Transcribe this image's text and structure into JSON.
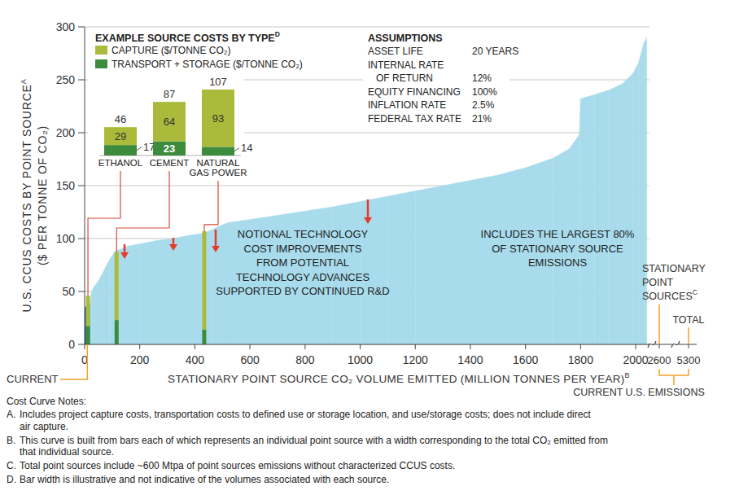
{
  "chart_data": [
    {
      "type": "area",
      "y_label": [
        "U.S. CCUS COSTS BY POINT SOURCE",
        "($ PER TONNE OF CO₂)"
      ],
      "y_label_sup": "A",
      "x_label": "STATIONARY POINT SOURCE CO₂ VOLUME EMITTED (MILLION TONNES PER YEAR)",
      "x_label_sup": "B",
      "xlim": [
        0,
        2050
      ],
      "xticks": [
        0,
        200,
        400,
        600,
        800,
        1000,
        1200,
        1400,
        1600,
        1800,
        2000
      ],
      "ylim": [
        0,
        300
      ],
      "yticks": [
        0,
        50,
        100,
        150,
        200,
        250,
        300
      ],
      "grid": true,
      "series": [
        {
          "name": "CURRENT",
          "color": "#1d6fb8",
          "x": [
            0,
            20
          ],
          "values": [
            35,
            38
          ]
        },
        {
          "color": "#a8dcec",
          "x": [
            20,
            25,
            35,
            50,
            70,
            90,
            110,
            130,
            160,
            200,
            260,
            320,
            380,
            430,
            460,
            490,
            520,
            600,
            700,
            800,
            900,
            1000,
            1100,
            1200,
            1300,
            1400,
            1500,
            1600,
            1700,
            1760,
            1795,
            1800,
            1850,
            1900,
            1950,
            1990,
            2010,
            2030,
            2040
          ],
          "values": [
            40,
            50,
            55,
            60,
            70,
            80,
            88,
            90,
            93,
            95,
            98,
            100,
            103,
            105,
            108,
            112,
            115,
            118,
            122,
            126,
            130,
            135,
            140,
            145,
            150,
            155,
            160,
            167,
            176,
            185,
            198,
            232,
            236,
            240,
            246,
            256,
            266,
            285,
            290
          ]
        }
      ],
      "annotations": [
        {
          "lines": [
            "NOTIONAL TECHNOLOGY",
            "COST IMPROVEMENTS",
            "FROM POTENTIAL",
            "TECHNOLOGY ADVANCES",
            "SUPPORTED BY CONTINUED R&D"
          ]
        },
        {
          "lines": [
            "INCLUDES THE LARGEST 80%",
            "OF STATIONARY SOURCE",
            "EMISSIONS"
          ]
        }
      ],
      "beyond_break": {
        "ticks": [
          2600,
          5300
        ],
        "labels": [
          {
            "lines": [
              "STATIONARY",
              "POINT",
              "SOURCES"
            ],
            "sup": "C"
          },
          {
            "lines": [
              "TOTAL"
            ]
          }
        ],
        "caption": "CURRENT U.S. EMISSIONS"
      }
    },
    {
      "type": "bar",
      "title": "EXAMPLE SOURCE COSTS BY TYPE",
      "title_sup": "D",
      "categories": [
        "ETHANOL",
        "CEMENT",
        "NATURAL GAS POWER"
      ],
      "series": [
        {
          "name": "CAPTURE ($/TONNE CO₂)",
          "color": "#aabb3c",
          "values": [
            29,
            64,
            93
          ]
        },
        {
          "name": "TRANSPORT + STORAGE ($/TONNE CO₂)",
          "color": "#3d8b3d",
          "values": [
            17,
            23,
            14
          ]
        }
      ],
      "totals": [
        46,
        87,
        107
      ],
      "volume": [
        12,
        116,
        434
      ],
      "ylim": [
        0,
        107
      ],
      "stacked": true,
      "data_labels": true,
      "tick_labels": false,
      "legend": "top-left"
    }
  ],
  "assumptions": {
    "title": "ASSUMPTIONS",
    "rows": [
      {
        "label": [
          "ASSET LIFE"
        ],
        "value": "20 YEARS"
      },
      {
        "label": [
          "INTERNAL RATE",
          "OF RETURN"
        ],
        "value": "12%"
      },
      {
        "label": [
          "EQUITY FINANCING"
        ],
        "value": "100%"
      },
      {
        "label": [
          "INFLATION RATE"
        ],
        "value": "2.5%"
      },
      {
        "label": [
          "FEDERAL TAX RATE"
        ],
        "value": "21%"
      }
    ]
  },
  "notes": {
    "title": "Cost Curve Notes:",
    "items": [
      {
        "letter": "A.",
        "lines": [
          "Includes project capture costs, transportation costs to defined use or storage location, and use/storage costs; does not include direct",
          "air capture."
        ]
      },
      {
        "letter": "B.",
        "lines": [
          "This curve is built from bars each of which represents an individual point source with a width corresponding to the total CO₂ emitted from",
          "that individual source."
        ]
      },
      {
        "letter": "C.",
        "lines": [
          "Total point sources include ~600 Mtpa of point sources emissions without characterized CCUS costs."
        ]
      },
      {
        "letter": "D.",
        "lines": [
          "Bar width is illustrative and not indicative of the volumes associated with each source."
        ]
      }
    ]
  }
}
